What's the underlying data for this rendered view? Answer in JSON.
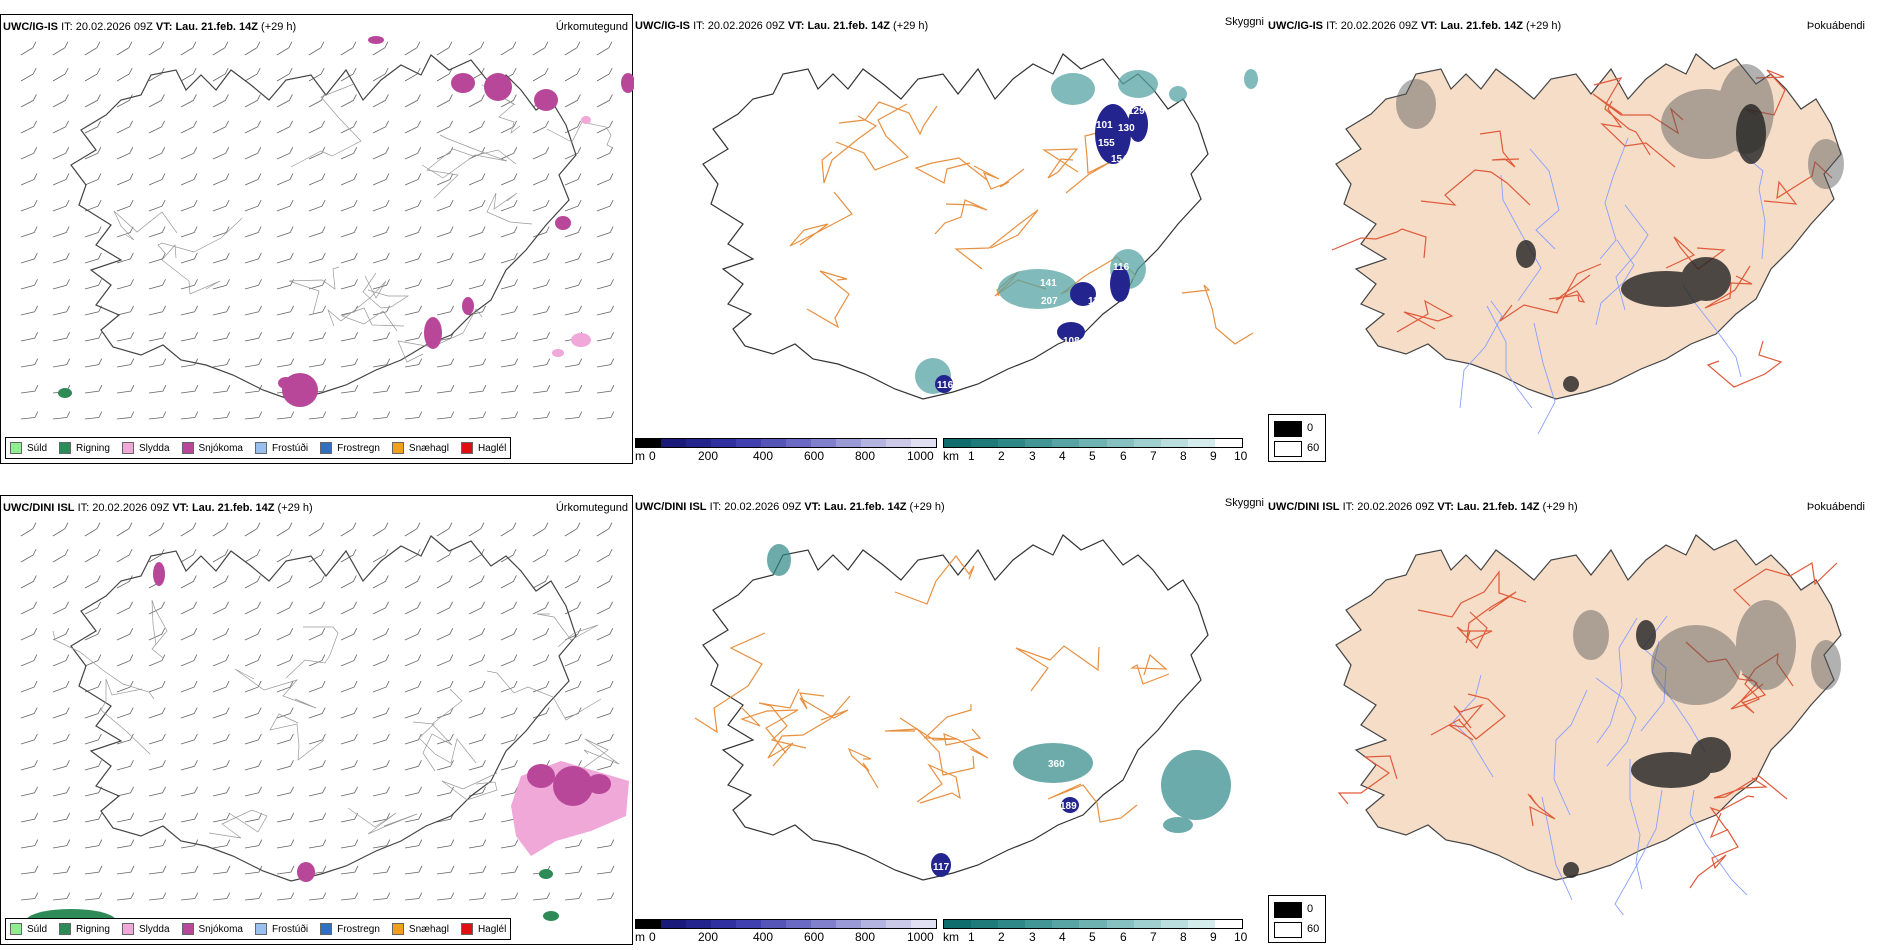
{
  "rows": [
    {
      "precip": {
        "model": "UWC/IG-IS",
        "it_label": "IT:",
        "it_value": "20.02.2026 09Z",
        "vt_label": "VT:",
        "vt_value": "Lau. 21.feb. 14Z",
        "lead": "(+29 h)",
        "name": "Úrkomutegund"
      },
      "vis": {
        "model": "UWC/IG-IS",
        "it_label": "IT:",
        "it_value": "20.02.2026 09Z",
        "vt_label": "VT:",
        "vt_value": "Lau. 21.feb. 14Z",
        "lead": "(+29 h)",
        "name": "Skyggni",
        "labels": [
          "126",
          "101",
          "130",
          "155",
          "129",
          "154",
          "141",
          "207",
          "116",
          "117",
          "135",
          "108",
          "116"
        ]
      },
      "cloud": {
        "model": "UWC/IG-IS",
        "it_label": "IT:",
        "it_value": "20.02.2026 09Z",
        "vt_label": "VT:",
        "vt_value": "Lau. 21.feb. 14Z",
        "lead": "(+29 h)",
        "name": "Þokuábendi"
      }
    },
    {
      "precip": {
        "model": "UWC/DINI ISL",
        "it_label": "IT:",
        "it_value": "20.02.2026 09Z",
        "vt_label": "VT:",
        "vt_value": "Lau. 21.feb. 14Z",
        "lead": "(+29 h)",
        "name": "Úrkomutegund"
      },
      "vis": {
        "model": "UWC/DINI ISL",
        "it_label": "IT:",
        "it_value": "20.02.2026 09Z",
        "vt_label": "VT:",
        "vt_value": "Lau. 21.feb. 14Z",
        "lead": "(+29 h)",
        "name": "Skyggni",
        "labels": [
          "360",
          "189",
          "117"
        ]
      },
      "cloud": {
        "model": "UWC/DINI ISL",
        "it_label": "IT:",
        "it_value": "20.02.2026 09Z",
        "vt_label": "VT:",
        "vt_value": "Lau. 21.feb. 14Z",
        "lead": "(+29 h)",
        "name": "Þokuábendi"
      }
    }
  ],
  "precip_legend": [
    {
      "label": "Súld",
      "color": "#90ee90"
    },
    {
      "label": "Rigning",
      "color": "#2e8b57"
    },
    {
      "label": "Slydda",
      "color": "#f0a8d8"
    },
    {
      "label": "Snjókoma",
      "color": "#b8479a"
    },
    {
      "label": "Frostúði",
      "color": "#9ac0f0"
    },
    {
      "label": "Frostregn",
      "color": "#3070c0"
    },
    {
      "label": "Snæhagl",
      "color": "#f0a020"
    },
    {
      "label": "Haglél",
      "color": "#e01010"
    }
  ],
  "height_scale": {
    "unit": "m",
    "ticks": [
      "0",
      "200",
      "400",
      "600",
      "800",
      "1000"
    ],
    "colors": [
      "#000000",
      "#1a1a7a",
      "#24248f",
      "#3030a0",
      "#4040b0",
      "#5555b8",
      "#6a6ac4",
      "#8080cc",
      "#9a9ad6",
      "#b4b4e0",
      "#cacae8",
      "#e0e0f2"
    ]
  },
  "km_scale": {
    "unit": "km",
    "ticks": [
      "1",
      "2",
      "3",
      "4",
      "5",
      "6",
      "7",
      "8",
      "9",
      "10"
    ],
    "colors": [
      "#0f6d6d",
      "#1f7a7a",
      "#2f8888",
      "#439696",
      "#58a4a4",
      "#6eb2b2",
      "#86c0c0",
      "#a0cfcf",
      "#badede",
      "#d4ecec",
      "#ffffff"
    ]
  },
  "fog_key": {
    "high": "0",
    "low": "60"
  }
}
